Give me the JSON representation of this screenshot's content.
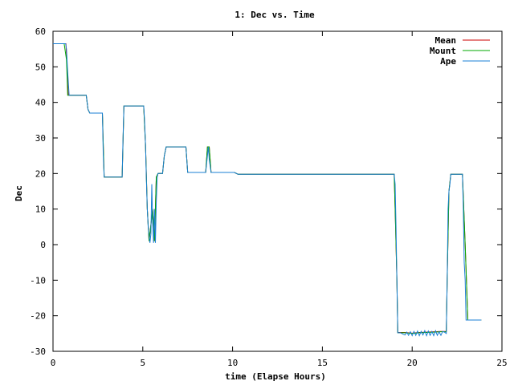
{
  "chart_data": {
    "type": "line",
    "title": "1: Dec vs. Time",
    "xlabel": "time (Elapse Hours)",
    "ylabel": "Dec",
    "xlim": [
      0,
      25
    ],
    "ylim": [
      -30,
      60
    ],
    "xticks": [
      0,
      5,
      10,
      15,
      20,
      25
    ],
    "yticks": [
      -30,
      -20,
      -10,
      0,
      10,
      20,
      30,
      40,
      50,
      60
    ],
    "legend_position": "top-right",
    "grid": false,
    "series": [
      {
        "name": "Mean",
        "color": "#cc0000",
        "x": [
          0,
          0.72,
          0.85,
          1.85,
          1.95,
          2.05,
          2.75,
          2.85,
          3.85,
          3.95,
          5.05,
          5.15,
          5.25,
          5.35,
          5.55,
          5.65,
          5.75,
          5.85,
          6.1,
          6.2,
          6.3,
          7.4,
          7.5,
          8.5,
          8.6,
          8.7,
          8.8,
          8.9,
          10.1,
          10.3,
          19.0,
          19.05,
          19.15,
          19.2,
          19.6,
          20.0,
          20.4,
          20.8,
          21.2,
          21.6,
          21.9,
          21.95,
          22.05,
          22.15,
          22.8,
          22.95,
          23.1,
          23.85
        ],
        "y": [
          56.5,
          56.5,
          42,
          42,
          38,
          37,
          37,
          19,
          19,
          39,
          39,
          28,
          10,
          1,
          10,
          1,
          19,
          20,
          20,
          25,
          27.5,
          27.5,
          20.3,
          20.3,
          27.5,
          27.5,
          20.3,
          20.3,
          20.3,
          19.8,
          19.8,
          10,
          -10,
          -24.7,
          -24.7,
          -24.9,
          -24.7,
          -24.6,
          -24.5,
          -24.4,
          -24.4,
          -10,
          15,
          19.8,
          19.8,
          0,
          -21.2,
          -21.2
        ]
      },
      {
        "name": "Mount",
        "color": "#00aa00",
        "x": [
          0,
          0.62,
          0.75,
          0.82,
          1.85,
          1.95,
          2.05,
          2.75,
          2.85,
          3.85,
          3.95,
          5.05,
          5.15,
          5.25,
          5.35,
          5.55,
          5.65,
          5.75,
          5.85,
          6.1,
          6.2,
          6.3,
          7.4,
          7.5,
          8.5,
          8.6,
          8.7,
          8.8,
          8.9,
          10.1,
          10.3,
          19.0,
          19.05,
          19.15,
          19.2,
          19.6,
          20.0,
          20.4,
          20.8,
          21.2,
          21.6,
          21.9,
          21.95,
          22.05,
          22.15,
          22.8,
          22.95,
          23.1,
          23.85
        ],
        "y": [
          56.5,
          56.5,
          52,
          42,
          42,
          38,
          37,
          37,
          19,
          19,
          39,
          39,
          28,
          10,
          1,
          10,
          1,
          19,
          20,
          20,
          25,
          27.5,
          27.5,
          20.3,
          20.3,
          27.5,
          27.5,
          20.3,
          20.3,
          20.3,
          19.8,
          19.8,
          10,
          -10,
          -24.8,
          -24.8,
          -25.0,
          -24.8,
          -24.7,
          -24.6,
          -24.5,
          -24.5,
          -10,
          15,
          19.8,
          19.8,
          0,
          -21.2,
          -21.2
        ]
      },
      {
        "name": "Ape",
        "color": "#1a7fd4",
        "x": [
          0,
          0.7,
          0.75,
          0.8,
          0.85,
          0.9,
          1.85,
          1.9,
          1.95,
          2.05,
          2.75,
          2.8,
          2.85,
          3.85,
          3.9,
          3.95,
          5.05,
          5.1,
          5.15,
          5.2,
          5.25,
          5.3,
          5.4,
          5.45,
          5.5,
          5.55,
          5.6,
          5.65,
          5.7,
          5.75,
          5.8,
          5.85,
          6.1,
          6.2,
          6.3,
          7.4,
          7.5,
          8.5,
          8.6,
          8.65,
          8.7,
          8.8,
          8.9,
          10.1,
          10.3,
          19.0,
          19.05,
          19.1,
          19.15,
          19.2,
          19.35,
          19.5,
          19.6,
          19.7,
          19.8,
          19.9,
          20.0,
          20.1,
          20.2,
          20.3,
          20.4,
          20.5,
          20.6,
          20.7,
          20.8,
          20.9,
          21.0,
          21.1,
          21.2,
          21.3,
          21.4,
          21.5,
          21.6,
          21.7,
          21.8,
          21.9,
          21.95,
          22.0,
          22.05,
          22.1,
          22.15,
          22.8,
          22.85,
          22.9,
          22.95,
          23.0,
          23.1,
          23.85
        ],
        "y": [
          56.5,
          56.5,
          55,
          50,
          46,
          42,
          42,
          40,
          38,
          37,
          37,
          25,
          19,
          19,
          30,
          39,
          39,
          35,
          28,
          18,
          10,
          5,
          0.5,
          3,
          17,
          6,
          0.5,
          10,
          0.5,
          12,
          19,
          20,
          20,
          25,
          27.5,
          27.5,
          20.3,
          20.3,
          25,
          27.5,
          24,
          20.3,
          20.3,
          20.3,
          19.8,
          19.8,
          17,
          5,
          -10,
          -24.8,
          -24.8,
          -25.2,
          -25.4,
          -24.6,
          -25.5,
          -24.5,
          -25.6,
          -24.4,
          -25.5,
          -24.3,
          -25.6,
          -24.4,
          -25.4,
          -24.2,
          -25.6,
          -24.3,
          -25.5,
          -24.4,
          -25.6,
          -24.2,
          -25.5,
          -24.5,
          -25.5,
          -24.4,
          -24.6,
          -25.0,
          -10,
          10,
          15,
          17,
          19.8,
          19.8,
          10,
          -5,
          -10,
          -21.2,
          -21.2,
          -21.2
        ]
      }
    ]
  }
}
